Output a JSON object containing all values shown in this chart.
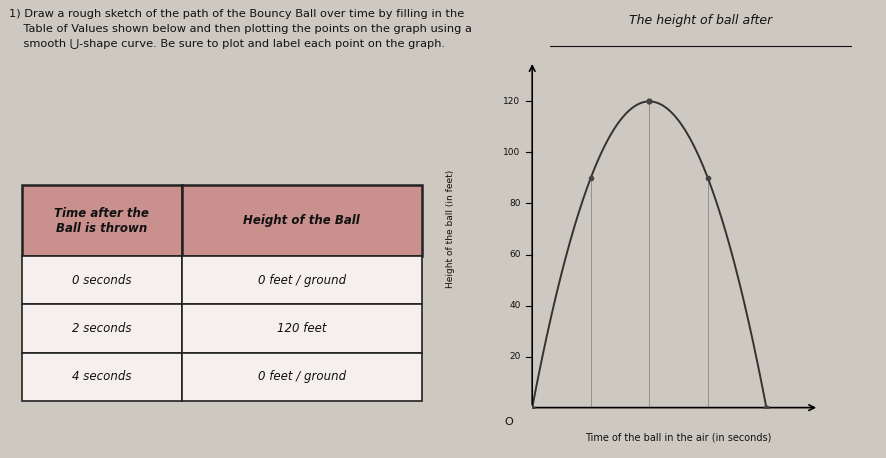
{
  "title": "The height of ball after",
  "xlabel": "Time of the ball in the air (in seconds)",
  "ylabel": "Height of the ball (in feet)",
  "table_header_col1": "Time after the\nBall is thrown",
  "table_header_col2": "Height of the Ball",
  "table_rows": [
    [
      "0 seconds",
      "0 feet / ground"
    ],
    [
      "2 seconds",
      "120 feet"
    ],
    [
      "4 seconds",
      "0 feet / ground"
    ]
  ],
  "data_points": [
    [
      0,
      0
    ],
    [
      2,
      120
    ],
    [
      4,
      0
    ]
  ],
  "extra_points": [
    [
      1,
      90
    ],
    [
      3,
      90
    ]
  ],
  "xlim": [
    0,
    5
  ],
  "ylim": [
    0,
    140
  ],
  "ytick_labels": [
    "20",
    "40",
    "60",
    "80",
    "100",
    "120"
  ],
  "ytick_values": [
    20,
    40,
    60,
    80,
    100,
    120
  ],
  "xticks": [
    1,
    2,
    3,
    4
  ],
  "grid_color": "#888888",
  "curve_color": "#333333",
  "point_color": "#444444",
  "bg_color": "#cdc8c0",
  "table_header_bg": "#c9908e",
  "table_cell_bg": "#f5f0ee",
  "table_border_color": "#222222",
  "text_color": "#111111",
  "font_family": "DejaVu Sans",
  "instruction": "1) Draw a rough sketch of the path of the Bouncy Ball over time by filling in the\n    Table of Values shown below and then plotting the points on the graph using a\n    smooth ⋃-shape curve. Be sure to plot and label each point on the graph."
}
